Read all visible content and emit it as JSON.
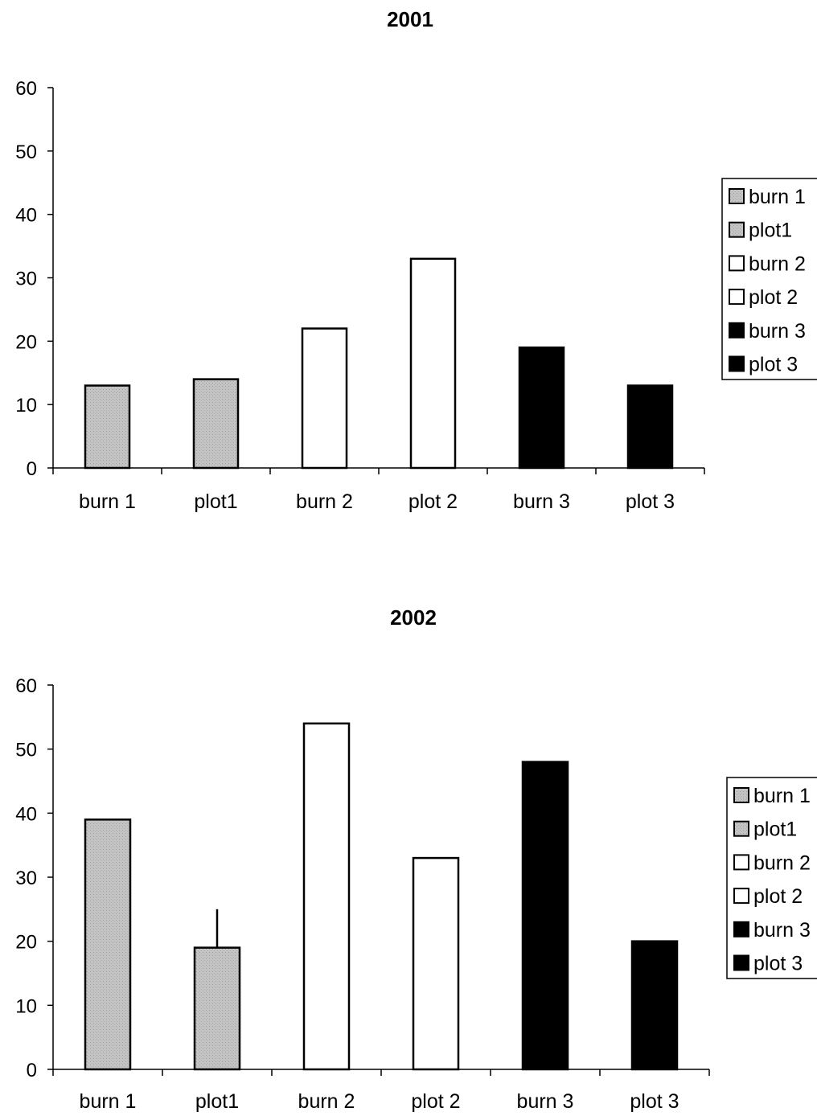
{
  "chart_data": [
    {
      "type": "bar",
      "title": "2001",
      "categories": [
        "burn 1",
        "plot1",
        "burn 2",
        "plot 2",
        "burn 3",
        "plot 3"
      ],
      "values": [
        13,
        14,
        22,
        33,
        19,
        13
      ],
      "error_up": [
        0,
        0,
        0,
        0,
        0,
        0
      ],
      "fills": [
        "#c4c4c4",
        "#c4c4c4",
        "#ffffff",
        "#ffffff",
        "#000000",
        "#000000"
      ],
      "yticks": [
        "0",
        "10",
        "20",
        "30",
        "40",
        "50",
        "60"
      ],
      "ylim": [
        0,
        60
      ],
      "grid": false,
      "legend_position": "right",
      "legend": [
        "burn 1",
        "plot1",
        "burn 2",
        "plot 2",
        "burn 3",
        "plot 3"
      ]
    },
    {
      "type": "bar",
      "title": "2002",
      "categories": [
        "burn 1",
        "plot1",
        "burn 2",
        "plot 2",
        "burn 3",
        "plot 3"
      ],
      "values": [
        39,
        19,
        54,
        33,
        48,
        20
      ],
      "error_up": [
        0,
        6,
        0,
        0,
        0,
        0
      ],
      "fills": [
        "#c4c4c4",
        "#c4c4c4",
        "#ffffff",
        "#ffffff",
        "#000000",
        "#000000"
      ],
      "yticks": [
        "0",
        "10",
        "20",
        "30",
        "40",
        "50",
        "60"
      ],
      "ylim": [
        0,
        60
      ],
      "grid": false,
      "legend_position": "right",
      "legend": [
        "burn 1",
        "plot1",
        "burn 2",
        "plot 2",
        "burn 3",
        "plot 3"
      ]
    }
  ]
}
